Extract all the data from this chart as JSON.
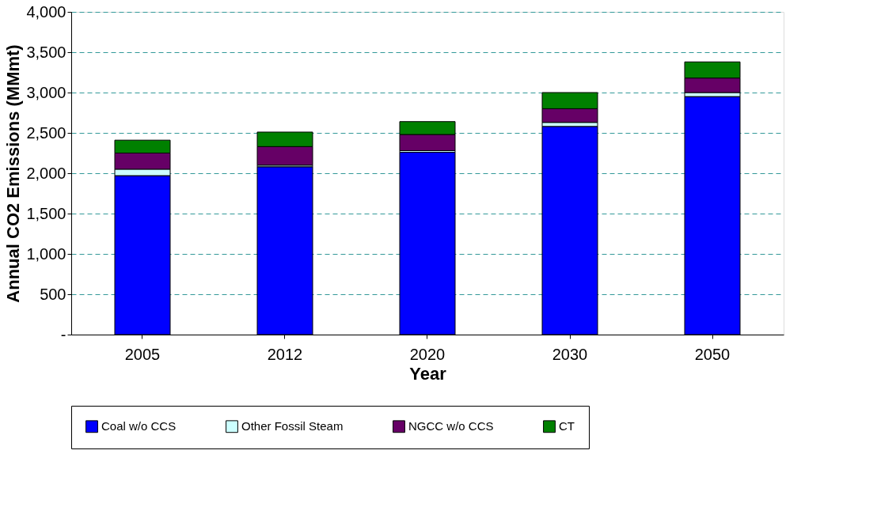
{
  "chart_data": {
    "type": "bar",
    "stacked": true,
    "xlabel": "Year",
    "ylabel": "Annual CO2 Emissions (MMmt)",
    "categories": [
      "2005",
      "2012",
      "2020",
      "2030",
      "2050"
    ],
    "series": [
      {
        "name": "Coal w/o CCS",
        "color": "#0000ff",
        "values": [
          1970,
          2080,
          2260,
          2580,
          2950
        ]
      },
      {
        "name": "Other Fossil Steam",
        "color": "#ccffff",
        "values": [
          80,
          20,
          20,
          50,
          50
        ]
      },
      {
        "name": "NGCC w/o CCS",
        "color": "#660066",
        "values": [
          200,
          230,
          200,
          170,
          180
        ]
      },
      {
        "name": "CT",
        "color": "#008000",
        "values": [
          160,
          180,
          160,
          200,
          200
        ]
      }
    ],
    "ylim": [
      0,
      4000
    ],
    "yticks": [
      {
        "value": 0,
        "label": "-"
      },
      {
        "value": 500,
        "label": "500"
      },
      {
        "value": 1000,
        "label": "1,000"
      },
      {
        "value": 1500,
        "label": "1,500"
      },
      {
        "value": 2000,
        "label": "2,000"
      },
      {
        "value": 2500,
        "label": "2,500"
      },
      {
        "value": 3000,
        "label": "3,000"
      },
      {
        "value": 3500,
        "label": "3,500"
      },
      {
        "value": 4000,
        "label": "4,000"
      }
    ],
    "grid": "y",
    "legend": "bottom"
  }
}
